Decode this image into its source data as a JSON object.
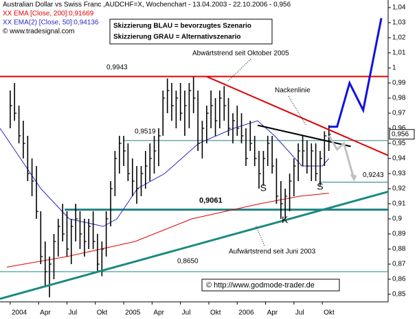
{
  "chart_data": {
    "type": "ohlc",
    "title": "Australian Dollar vs Swiss Franc ,AUDCHF=X, Wochenchart - 13.04.2003 - 22.10.2006 - 0,956",
    "source": "© www.tradesignal.com",
    "legend_box": [
      "Skizzierung BLAU = bevorzugtes Szenario",
      "Skizzierung GRAU = Alternativszenario"
    ],
    "copyright": "© http://www.godmode-trader.de",
    "xlim": [
      2003.91,
      2007.33
    ],
    "ylim": [
      0.845,
      1.045
    ],
    "xticks": [
      {
        "value": 2004,
        "label": "2004"
      },
      {
        "value": 2004.25,
        "label": "Apr"
      },
      {
        "value": 2004.5,
        "label": "Jul"
      },
      {
        "value": 2004.75,
        "label": "Okt"
      },
      {
        "value": 2005,
        "label": "2005"
      },
      {
        "value": 2005.25,
        "label": "Apr"
      },
      {
        "value": 2005.5,
        "label": "Jul"
      },
      {
        "value": 2005.75,
        "label": "Okt"
      },
      {
        "value": 2006,
        "label": "2006"
      },
      {
        "value": 2006.25,
        "label": "Apr"
      },
      {
        "value": 2006.5,
        "label": "Jul"
      },
      {
        "value": 2006.75,
        "label": "Okt"
      }
    ],
    "yticks": [
      {
        "value": 1.04,
        "label": "1,04"
      },
      {
        "value": 1.03,
        "label": "1,03"
      },
      {
        "value": 1.02,
        "label": "1,02"
      },
      {
        "value": 1.01,
        "label": "1,01"
      },
      1,
      {
        "value": 0.99,
        "label": "0,99"
      },
      {
        "value": 0.98,
        "label": "0,98"
      },
      {
        "value": 0.97,
        "label": "0,97"
      },
      {
        "value": 0.96,
        "label": "0,96"
      },
      {
        "value": 0.95,
        "label": "0,95"
      },
      {
        "value": 0.94,
        "label": "0,94"
      },
      {
        "value": 0.93,
        "label": "0,93"
      },
      {
        "value": 0.92,
        "label": "0,92"
      },
      {
        "value": 0.91,
        "label": "0,91"
      },
      {
        "value": 0.9,
        "label": "0,9"
      },
      {
        "value": 0.89,
        "label": "0,89"
      },
      {
        "value": 0.88,
        "label": "0,88"
      },
      {
        "value": 0.87,
        "label": "0,87"
      },
      {
        "value": 0.86,
        "label": "0,86"
      },
      {
        "value": 0.85,
        "label": "0,85"
      }
    ],
    "last": {
      "value": 0.956,
      "label": "0,956"
    },
    "color": "#000000",
    "x": [
      2004.0,
      2004.038,
      2004.077,
      2004.115,
      2004.154,
      2004.192,
      2004.231,
      2004.269,
      2004.308,
      2004.346,
      2004.385,
      2004.423,
      2004.462,
      2004.5,
      2004.538,
      2004.577,
      2004.615,
      2004.654,
      2004.692,
      2004.731,
      2004.769,
      2004.808,
      2004.846,
      2004.885,
      2004.923,
      2004.962,
      2005.0,
      2005.038,
      2005.077,
      2005.115,
      2005.154,
      2005.192,
      2005.231,
      2005.269,
      2005.308,
      2005.346,
      2005.385,
      2005.423,
      2005.462,
      2005.5,
      2005.538,
      2005.577,
      2005.615,
      2005.654,
      2005.692,
      2005.731,
      2005.769,
      2005.808,
      2005.846,
      2005.885,
      2005.923,
      2005.962,
      2006.0,
      2006.038,
      2006.077,
      2006.115,
      2006.154,
      2006.192,
      2006.231,
      2006.269,
      2006.308,
      2006.346,
      2006.385,
      2006.423,
      2006.462,
      2006.5,
      2006.538,
      2006.577,
      2006.615,
      2006.654,
      2006.692,
      2006.731,
      2006.769,
      2006.808
    ],
    "high": [
      0.985,
      0.99,
      0.975,
      0.965,
      0.955,
      0.94,
      0.935,
      0.905,
      0.885,
      0.875,
      0.89,
      0.9,
      0.91,
      0.905,
      0.9,
      0.91,
      0.905,
      0.9,
      0.9,
      0.905,
      0.89,
      0.885,
      0.905,
      0.925,
      0.945,
      0.955,
      0.955,
      0.95,
      0.94,
      0.935,
      0.935,
      0.945,
      0.95,
      0.955,
      0.96,
      0.985,
      0.993,
      0.99,
      0.985,
      0.99,
      0.985,
      0.99,
      0.994,
      0.985,
      0.965,
      0.975,
      0.985,
      0.98,
      0.985,
      0.988,
      0.98,
      0.97,
      0.975,
      0.97,
      0.96,
      0.965,
      0.955,
      0.945,
      0.945,
      0.955,
      0.955,
      0.94,
      0.925,
      0.92,
      0.93,
      0.94,
      0.95,
      0.955,
      0.952,
      0.95,
      0.95,
      0.945,
      0.958,
      0.962
    ],
    "low": [
      0.96,
      0.965,
      0.95,
      0.94,
      0.925,
      0.915,
      0.9,
      0.87,
      0.855,
      0.848,
      0.86,
      0.875,
      0.885,
      0.875,
      0.87,
      0.885,
      0.88,
      0.875,
      0.88,
      0.88,
      0.865,
      0.862,
      0.875,
      0.895,
      0.915,
      0.93,
      0.935,
      0.925,
      0.915,
      0.91,
      0.915,
      0.92,
      0.925,
      0.93,
      0.935,
      0.955,
      0.97,
      0.965,
      0.96,
      0.965,
      0.955,
      0.96,
      0.97,
      0.945,
      0.94,
      0.95,
      0.96,
      0.955,
      0.96,
      0.965,
      0.955,
      0.95,
      0.955,
      0.95,
      0.935,
      0.945,
      0.935,
      0.92,
      0.922,
      0.935,
      0.93,
      0.91,
      0.9,
      0.9,
      0.905,
      0.915,
      0.925,
      0.935,
      0.93,
      0.925,
      0.925,
      0.922,
      0.935,
      0.945
    ],
    "close": [
      0.975,
      0.97,
      0.955,
      0.95,
      0.93,
      0.925,
      0.905,
      0.875,
      0.865,
      0.87,
      0.885,
      0.895,
      0.89,
      0.88,
      0.895,
      0.9,
      0.89,
      0.885,
      0.895,
      0.885,
      0.87,
      0.88,
      0.9,
      0.92,
      0.94,
      0.95,
      0.945,
      0.93,
      0.925,
      0.92,
      0.93,
      0.935,
      0.94,
      0.945,
      0.955,
      0.98,
      0.985,
      0.975,
      0.98,
      0.97,
      0.975,
      0.985,
      0.98,
      0.95,
      0.96,
      0.97,
      0.975,
      0.965,
      0.98,
      0.975,
      0.96,
      0.965,
      0.96,
      0.955,
      0.94,
      0.95,
      0.94,
      0.93,
      0.94,
      0.95,
      0.935,
      0.915,
      0.91,
      0.915,
      0.925,
      0.935,
      0.945,
      0.945,
      0.935,
      0.945,
      0.93,
      0.94,
      0.955,
      0.956
    ],
    "series": [
      {
        "name": "XX EMA [Close, 200]:0,91669",
        "color": "#e00000",
        "x": [
          2003.97,
          2004.5,
          2004.8,
          2005.1,
          2005.6,
          2006.2,
          2006.55,
          2006.808
        ],
        "values": [
          0.868,
          0.875,
          0.88,
          0.885,
          0.9,
          0.91,
          0.915,
          0.917
        ]
      },
      {
        "name": "XX EMA(2) [Close, 50]:0,94136",
        "color": "#2828c8",
        "x": [
          2003.91,
          2004.27,
          2004.52,
          2004.82,
          2004.94,
          2005.12,
          2005.36,
          2005.66,
          2005.97,
          2006.18,
          2006.33,
          2006.45,
          2006.57,
          2006.75,
          2006.808
        ],
        "values": [
          0.96,
          0.92,
          0.9,
          0.895,
          0.9,
          0.92,
          0.93,
          0.95,
          0.96,
          0.965,
          0.955,
          0.945,
          0.935,
          0.935,
          0.94
        ]
      }
    ],
    "levels": [
      {
        "value": 0.9943,
        "label": "0,9943",
        "from": 2003.91,
        "color": "#e00000"
      },
      {
        "value": 0.9519,
        "label": "0,9519",
        "from": 2005.0,
        "color": "#208080"
      },
      {
        "value": 0.9061,
        "label": "0,9061",
        "from": 2004.48,
        "color": "#208080"
      },
      {
        "value": 0.865,
        "label": "0,8650",
        "from": 2003.91,
        "color": "#208080"
      },
      {
        "value": 0.9243,
        "label": "0,9243",
        "from": 2006.72,
        "color": "#208080"
      }
    ],
    "downtrend": {
      "label": "Abwärtstrend seit Oktober 2005",
      "color": "#e00000",
      "x": [
        2005.73,
        2007.33
      ],
      "values": [
        0.9943,
        0.942
      ]
    },
    "neckline": {
      "label": "Nackenlinie",
      "color": "#000000",
      "x": [
        2006.18,
        2007.0
      ],
      "values": [
        0.962,
        0.948
      ]
    },
    "uptrend": {
      "label": "Aufwärtstrend seit Juni 2003",
      "color": "#1a8a80",
      "x": [
        2003.91,
        2007.33
      ],
      "values": [
        0.847,
        0.918
      ]
    },
    "scenario_blue": {
      "color": "#1010e0",
      "x": [
        2006.81,
        2006.88,
        2006.99,
        2007.11,
        2007.27
      ],
      "values": [
        0.961,
        0.961,
        0.99,
        0.972,
        1.033
      ]
    },
    "scenario_gray": {
      "color": "#c0c0c0",
      "x": [
        2006.81,
        2006.88,
        2006.94,
        2007.03
      ],
      "values": [
        0.955,
        0.946,
        0.95,
        0.926
      ]
    },
    "pattern": [
      {
        "label": "S",
        "x": 2006.23,
        "value": 0.92
      },
      {
        "label": "K",
        "x": 2006.42,
        "value": 0.899
      },
      {
        "label": "S",
        "x": 2006.73,
        "value": 0.921
      }
    ]
  }
}
